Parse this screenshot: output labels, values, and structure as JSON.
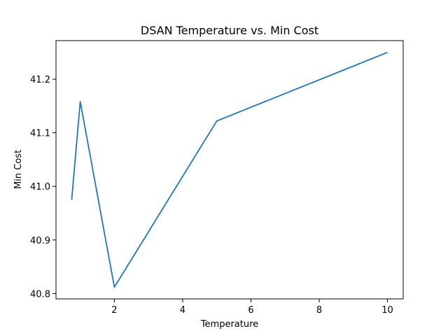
{
  "chart_data": {
    "type": "line",
    "title": "DSAN Temperature vs. Min Cost",
    "xlabel": "Temperature",
    "ylabel": "Min Cost",
    "xlim": [
      0.29,
      10.46
    ],
    "ylim": [
      40.79,
      41.272
    ],
    "xticks": [
      2,
      4,
      6,
      8,
      10
    ],
    "xtick_labels": [
      "2",
      "4",
      "6",
      "8",
      "10"
    ],
    "yticks": [
      40.8,
      40.9,
      41.0,
      41.1,
      41.2
    ],
    "ytick_labels": [
      "40.8",
      "40.9",
      "41.0",
      "41.1",
      "41.2"
    ],
    "grid": false,
    "series": [
      {
        "color": "#1f77b4",
        "x": [
          0.75,
          1.0,
          2.0,
          5.0,
          10.0
        ],
        "y": [
          40.975,
          41.158,
          40.812,
          41.122,
          41.25
        ]
      }
    ]
  }
}
